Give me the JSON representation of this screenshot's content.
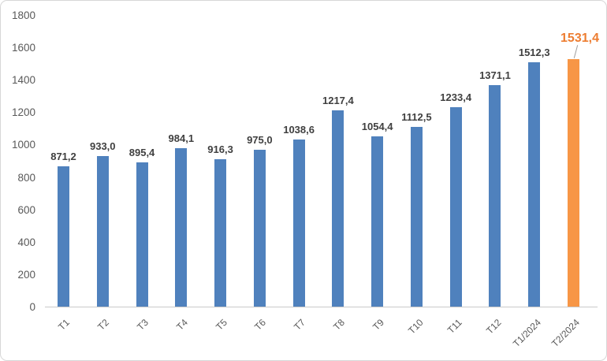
{
  "chart": {
    "frame_border_color": "#d7d7d7",
    "background_color": "#ffffff",
    "axis_line_color": "#c9c9c9",
    "axis_label_color": "#595959"
  },
  "chart_data": {
    "type": "bar",
    "title": "",
    "xlabel": "",
    "ylabel": "",
    "categories": [
      "T1",
      "T2",
      "T3",
      "T4",
      "T5",
      "T6",
      "T7",
      "T8",
      "T9",
      "T10",
      "T11",
      "T12",
      "T1/2024",
      "T2/2024"
    ],
    "values": [
      871.2,
      933.0,
      895.4,
      984.1,
      916.3,
      975.0,
      1038.6,
      1217.4,
      1054.4,
      1112.5,
      1233.4,
      1371.1,
      1512.3,
      1531.4
    ],
    "value_labels": [
      "871,2",
      "933,0",
      "895,4",
      "984,1",
      "916,3",
      "975,0",
      "1038,6",
      "1217,4",
      "1054,4",
      "1112,5",
      "1233,4",
      "1371,1",
      "1512,3",
      "1531,4"
    ],
    "ylim": [
      0,
      1800
    ],
    "y_ticks": [
      0,
      200,
      400,
      600,
      800,
      1000,
      1200,
      1400,
      1600,
      1800
    ],
    "y_tick_labels": [
      "0",
      "200",
      "400",
      "600",
      "800",
      "1000",
      "1200",
      "1400",
      "1600",
      "1800"
    ],
    "grid": false,
    "legend": "none",
    "bar_color": "#4f81bd",
    "value_label_color": "#3f3f3f",
    "highlight_index": 13,
    "highlight_bar_color": "#f79646",
    "highlight_label_color": "#ed7d31",
    "highlight_has_leader_line": true
  }
}
